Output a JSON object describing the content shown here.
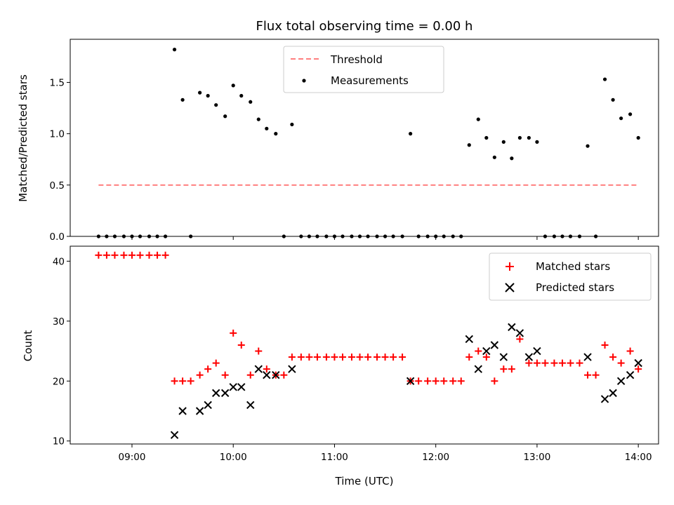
{
  "chart_data": [
    {
      "type": "scatter",
      "panel": "top",
      "title": "Flux total observing time = 0.00 h",
      "xlabel": "",
      "ylabel": "Matched/Predicted stars",
      "xlim": [
        8.39,
        14.2
      ],
      "ylim": [
        0,
        1.92
      ],
      "yticks": [
        0.0,
        0.5,
        1.0,
        1.5
      ],
      "ytick_labels": [
        "0.0",
        "0.5",
        "1.0",
        "1.5"
      ],
      "xticks": [
        9,
        10,
        11,
        12,
        13,
        14
      ],
      "legend": {
        "placement": "top-center",
        "entries": [
          "Threshold",
          "Measurements"
        ]
      },
      "colors": {
        "threshold": "#ff7f7f",
        "measurements": "#000000"
      },
      "threshold": {
        "name": "Threshold",
        "x": [
          8.67,
          14.0
        ],
        "value": 0.5
      },
      "series": [
        {
          "name": "Measurements",
          "x": [
            8.67,
            8.75,
            8.83,
            8.92,
            9.0,
            9.08,
            9.17,
            9.25,
            9.33,
            9.42,
            9.5,
            9.58,
            9.67,
            9.75,
            9.83,
            9.92,
            10.0,
            10.08,
            10.17,
            10.25,
            10.33,
            10.42,
            10.5,
            10.58,
            10.67,
            10.75,
            10.83,
            10.92,
            11.0,
            11.08,
            11.17,
            11.25,
            11.33,
            11.42,
            11.5,
            11.58,
            11.67,
            11.75,
            11.83,
            11.92,
            12.0,
            12.08,
            12.17,
            12.25,
            12.33,
            12.42,
            12.5,
            12.58,
            12.67,
            12.75,
            12.83,
            12.92,
            13.0,
            13.08,
            13.17,
            13.25,
            13.33,
            13.42,
            13.5,
            13.58,
            13.67,
            13.75,
            13.83,
            13.92,
            14.0
          ],
          "y": [
            0,
            0,
            0,
            0,
            0,
            0,
            0,
            0,
            0,
            1.82,
            1.33,
            0,
            1.4,
            1.37,
            1.28,
            1.17,
            1.47,
            1.37,
            1.31,
            1.14,
            1.05,
            1.0,
            0,
            1.09,
            0,
            0,
            0,
            0,
            0,
            0,
            0,
            0,
            0,
            0,
            0,
            0,
            0,
            1.0,
            0,
            0,
            0,
            0,
            0,
            0,
            0.89,
            1.14,
            0.96,
            0.77,
            0.92,
            0.76,
            0.96,
            0.96,
            0.92,
            0,
            0,
            0,
            0,
            0,
            0.88,
            0,
            1.53,
            1.33,
            1.15,
            1.19,
            0.96
          ]
        }
      ]
    },
    {
      "type": "scatter",
      "panel": "bottom",
      "title": "",
      "xlabel": "Time (UTC)",
      "ylabel": "Count",
      "xlim": [
        8.39,
        14.2
      ],
      "ylim": [
        9.5,
        42.5
      ],
      "yticks": [
        10,
        20,
        30,
        40
      ],
      "ytick_labels": [
        "10",
        "20",
        "30",
        "40"
      ],
      "xticks": [
        9,
        10,
        11,
        12,
        13,
        14
      ],
      "xtick_labels": [
        "09:00",
        "10:00",
        "11:00",
        "12:00",
        "13:00",
        "14:00"
      ],
      "legend": {
        "placement": "top-right",
        "entries": [
          "Matched stars",
          "Predicted stars"
        ]
      },
      "colors": {
        "matched": "#ff0000",
        "predicted": "#000000"
      },
      "series": [
        {
          "name": "Matched stars",
          "marker": "+",
          "x": [
            8.67,
            8.75,
            8.83,
            8.92,
            9.0,
            9.08,
            9.17,
            9.25,
            9.33,
            9.42,
            9.5,
            9.58,
            9.67,
            9.75,
            9.83,
            9.92,
            10.0,
            10.08,
            10.17,
            10.25,
            10.33,
            10.42,
            10.5,
            10.58,
            10.67,
            10.75,
            10.83,
            10.92,
            11.0,
            11.08,
            11.17,
            11.25,
            11.33,
            11.42,
            11.5,
            11.58,
            11.67,
            11.75,
            11.83,
            11.92,
            12.0,
            12.08,
            12.17,
            12.25,
            12.33,
            12.42,
            12.5,
            12.58,
            12.67,
            12.75,
            12.83,
            12.92,
            13.0,
            13.08,
            13.17,
            13.25,
            13.33,
            13.42,
            13.5,
            13.58,
            13.67,
            13.75,
            13.83,
            13.92,
            14.0
          ],
          "y": [
            41,
            41,
            41,
            41,
            41,
            41,
            41,
            41,
            41,
            20,
            20,
            20,
            21,
            22,
            23,
            21,
            28,
            26,
            21,
            25,
            22,
            21,
            21,
            24,
            24,
            24,
            24,
            24,
            24,
            24,
            24,
            24,
            24,
            24,
            24,
            24,
            24,
            20,
            20,
            20,
            20,
            20,
            20,
            20,
            24,
            25,
            24,
            20,
            22,
            22,
            27,
            23,
            23,
            23,
            23,
            23,
            23,
            23,
            21,
            21,
            26,
            24,
            23,
            25,
            22
          ]
        },
        {
          "name": "Predicted stars",
          "marker": "x",
          "x": [
            9.42,
            9.5,
            9.67,
            9.75,
            9.83,
            9.92,
            10.0,
            10.08,
            10.17,
            10.25,
            10.33,
            10.42,
            10.58,
            11.75,
            12.33,
            12.42,
            12.5,
            12.58,
            12.67,
            12.75,
            12.83,
            12.92,
            13.0,
            13.5,
            13.67,
            13.75,
            13.83,
            13.92,
            14.0
          ],
          "y": [
            11,
            15,
            15,
            16,
            18,
            18,
            19,
            19,
            16,
            22,
            21,
            21,
            22,
            20,
            27,
            22,
            25,
            26,
            24,
            29,
            28,
            24,
            25,
            24,
            17,
            18,
            20,
            21,
            23
          ]
        }
      ]
    }
  ]
}
